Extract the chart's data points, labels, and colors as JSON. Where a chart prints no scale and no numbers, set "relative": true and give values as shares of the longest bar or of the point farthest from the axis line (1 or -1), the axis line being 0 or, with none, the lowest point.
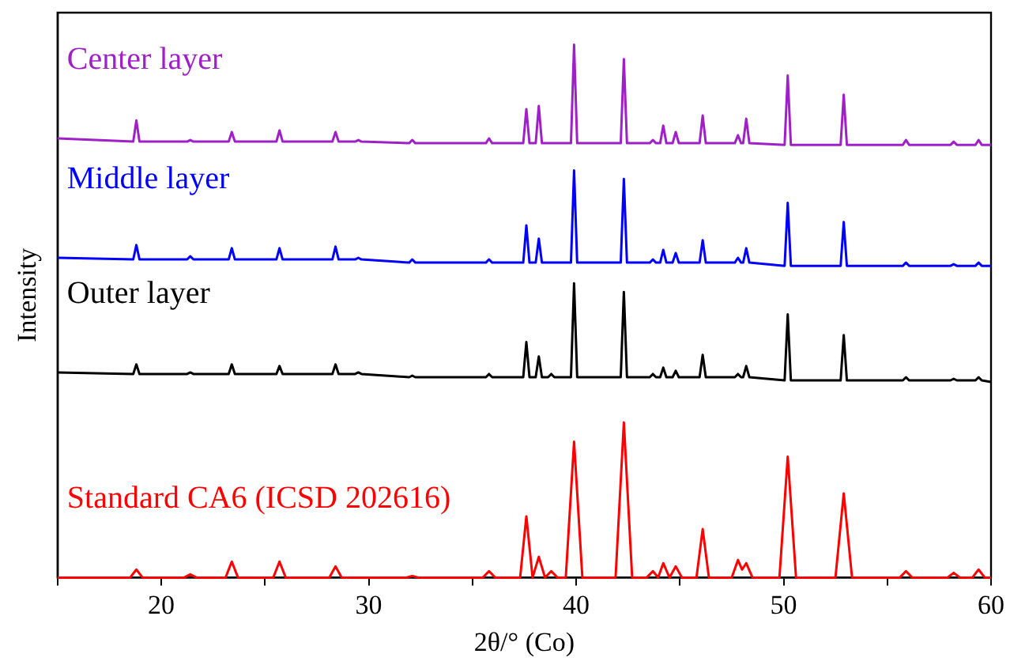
{
  "chart_data": {
    "type": "line",
    "relative": true,
    "xlabel": "2θ/° (Co)",
    "ylabel": "Intensity",
    "xlim": [
      15,
      60
    ],
    "xticks": [
      {
        "value": 15,
        "label": null
      },
      20,
      {
        "value": 25,
        "label": null
      },
      30,
      {
        "value": 35,
        "label": null
      },
      40,
      {
        "value": 45,
        "label": null
      },
      50,
      {
        "value": 55,
        "label": null
      },
      60
    ],
    "legend": false,
    "grid": false,
    "marker": "none",
    "line_style": "solid",
    "series": [
      {
        "name": "Center layer",
        "color": "#a020c8",
        "x": [
          15,
          18.65,
          18.8,
          18.95,
          21.25,
          21.4,
          21.55,
          23.25,
          23.4,
          23.55,
          25.55,
          25.7,
          25.85,
          28.25,
          28.4,
          28.55,
          29.35,
          29.5,
          29.65,
          31.95,
          32.1,
          32.25,
          35.65,
          35.8,
          35.95,
          37.45,
          37.6,
          37.75,
          38.05,
          38.2,
          38.35,
          39.75,
          39.9,
          40.05,
          42.15,
          42.3,
          42.45,
          43.55,
          43.7,
          43.85,
          44.05,
          44.2,
          44.35,
          44.65,
          44.8,
          44.95,
          45.95,
          46.1,
          46.25,
          47.65,
          47.8,
          47.95,
          48.05,
          48.2,
          48.35,
          50.05,
          50.2,
          50.35,
          52.75,
          52.9,
          53.05,
          55.75,
          55.9,
          56.05,
          58.05,
          58.2,
          58.35,
          59.25,
          59.4,
          59.55,
          60
        ],
        "values": [
          0.824,
          0.818,
          0.858,
          0.818,
          0.818,
          0.821,
          0.818,
          0.818,
          0.836,
          0.818,
          0.818,
          0.839,
          0.818,
          0.818,
          0.836,
          0.818,
          0.818,
          0.821,
          0.818,
          0.815,
          0.821,
          0.815,
          0.815,
          0.824,
          0.815,
          0.815,
          0.879,
          0.815,
          0.815,
          0.885,
          0.815,
          0.815,
          1,
          0.815,
          0.815,
          0.973,
          0.815,
          0.815,
          0.821,
          0.815,
          0.815,
          0.848,
          0.815,
          0.815,
          0.836,
          0.815,
          0.815,
          0.867,
          0.815,
          0.815,
          0.83,
          0.815,
          0.815,
          0.861,
          0.815,
          0.812,
          0.942,
          0.812,
          0.812,
          0.906,
          0.812,
          0.812,
          0.821,
          0.812,
          0.812,
          0.818,
          0.812,
          0.812,
          0.821,
          0.812,
          0.812
        ]
      },
      {
        "name": "Middle layer",
        "color": "#0000ff",
        "x": [
          15,
          18.65,
          18.8,
          18.95,
          21.25,
          21.4,
          21.55,
          23.25,
          23.4,
          23.55,
          25.55,
          25.7,
          25.85,
          28.25,
          28.4,
          28.55,
          29.35,
          29.5,
          29.65,
          31.95,
          32.1,
          32.25,
          35.65,
          35.8,
          35.95,
          37.45,
          37.6,
          37.75,
          38.05,
          38.2,
          38.35,
          39.75,
          39.9,
          40.05,
          42.15,
          42.3,
          42.45,
          43.55,
          43.7,
          43.85,
          44.05,
          44.2,
          44.35,
          44.65,
          44.8,
          44.95,
          45.95,
          46.1,
          46.25,
          47.65,
          47.8,
          47.95,
          48.05,
          48.2,
          48.35,
          50.05,
          50.2,
          50.35,
          52.75,
          52.9,
          53.05,
          55.75,
          55.9,
          56.05,
          58.05,
          58.2,
          58.35,
          59.25,
          59.4,
          59.55,
          60
        ],
        "values": [
          0.6,
          0.597,
          0.624,
          0.597,
          0.597,
          0.603,
          0.597,
          0.597,
          0.618,
          0.597,
          0.597,
          0.618,
          0.597,
          0.597,
          0.621,
          0.597,
          0.597,
          0.6,
          0.597,
          0.591,
          0.597,
          0.591,
          0.591,
          0.597,
          0.591,
          0.591,
          0.661,
          0.591,
          0.591,
          0.636,
          0.591,
          0.591,
          0.764,
          0.591,
          0.591,
          0.748,
          0.591,
          0.591,
          0.597,
          0.591,
          0.591,
          0.615,
          0.591,
          0.591,
          0.609,
          0.591,
          0.591,
          0.633,
          0.591,
          0.591,
          0.6,
          0.591,
          0.591,
          0.618,
          0.591,
          0.585,
          0.703,
          0.585,
          0.585,
          0.667,
          0.585,
          0.585,
          0.591,
          0.585,
          0.585,
          0.588,
          0.585,
          0.585,
          0.591,
          0.585,
          0.585
        ]
      },
      {
        "name": "Outer layer",
        "color": "#000000",
        "x": [
          15,
          18.65,
          18.8,
          18.95,
          21.25,
          21.4,
          21.55,
          23.25,
          23.4,
          23.55,
          25.55,
          25.7,
          25.85,
          28.25,
          28.4,
          28.55,
          29.35,
          29.5,
          29.65,
          31.95,
          32.1,
          32.25,
          35.65,
          35.8,
          35.95,
          37.45,
          37.6,
          37.75,
          38.05,
          38.2,
          38.35,
          38.65,
          38.8,
          38.95,
          39.75,
          39.9,
          40.05,
          42.15,
          42.3,
          42.45,
          43.55,
          43.7,
          43.85,
          44.05,
          44.2,
          44.35,
          44.65,
          44.8,
          44.95,
          45.95,
          46.1,
          46.25,
          47.65,
          47.8,
          47.95,
          48.05,
          48.2,
          48.35,
          50.05,
          50.2,
          50.35,
          52.75,
          52.9,
          53.05,
          55.75,
          55.9,
          56.05,
          58.05,
          58.2,
          58.35,
          59.25,
          59.4,
          59.55,
          60
        ],
        "values": [
          0.385,
          0.382,
          0.4,
          0.382,
          0.382,
          0.385,
          0.382,
          0.382,
          0.4,
          0.382,
          0.382,
          0.397,
          0.382,
          0.382,
          0.4,
          0.382,
          0.382,
          0.385,
          0.382,
          0.376,
          0.379,
          0.376,
          0.376,
          0.382,
          0.376,
          0.376,
          0.442,
          0.376,
          0.376,
          0.415,
          0.376,
          0.376,
          0.382,
          0.376,
          0.376,
          0.552,
          0.376,
          0.376,
          0.536,
          0.376,
          0.376,
          0.382,
          0.376,
          0.376,
          0.394,
          0.376,
          0.376,
          0.388,
          0.376,
          0.376,
          0.418,
          0.376,
          0.376,
          0.382,
          0.376,
          0.376,
          0.397,
          0.376,
          0.37,
          0.494,
          0.37,
          0.37,
          0.455,
          0.37,
          0.37,
          0.376,
          0.37,
          0.37,
          0.373,
          0.37,
          0.37,
          0.376,
          0.37,
          0.367
        ]
      },
      {
        "name": "Standard CA6 (ICSD 202616)",
        "color": "#ff0000",
        "x": [
          15,
          18.5,
          18.8,
          19.1,
          21.1,
          21.4,
          21.7,
          23.1,
          23.4,
          23.7,
          25.4,
          25.7,
          26.0,
          28.1,
          28.4,
          28.7,
          31.8,
          32.1,
          32.4,
          35.5,
          35.8,
          36.1,
          37.3,
          37.6,
          37.9,
          38.2,
          38.5,
          38.8,
          39.1,
          39.5,
          39.9,
          40.3,
          41.9,
          42.3,
          42.7,
          43.4,
          43.7,
          43.95,
          44.2,
          44.5,
          44.8,
          45.1,
          45.8,
          46.1,
          46.4,
          47.5,
          47.8,
          48.0,
          48.2,
          48.5,
          49.8,
          50.2,
          50.6,
          52.5,
          52.9,
          53.3,
          55.6,
          55.9,
          56.2,
          57.9,
          58.2,
          58.5,
          59.1,
          59.4,
          59.7,
          60
        ],
        "values": [
          0,
          0,
          0.015,
          0,
          0,
          0.006,
          0,
          0,
          0.03,
          0,
          0,
          0.03,
          0,
          0,
          0.021,
          0,
          0,
          0.003,
          0,
          0,
          0.012,
          0,
          0,
          0.115,
          0,
          0.039,
          0,
          0.012,
          0,
          0,
          0.255,
          0,
          0,
          0.291,
          0,
          0,
          0.012,
          0,
          0.027,
          0,
          0.021,
          0,
          0,
          0.091,
          0,
          0,
          0.033,
          0.015,
          0.027,
          0,
          0,
          0.227,
          0,
          0,
          0.158,
          0,
          0,
          0.012,
          0,
          0,
          0.009,
          0,
          0,
          0.015,
          0,
          0
        ]
      }
    ]
  }
}
